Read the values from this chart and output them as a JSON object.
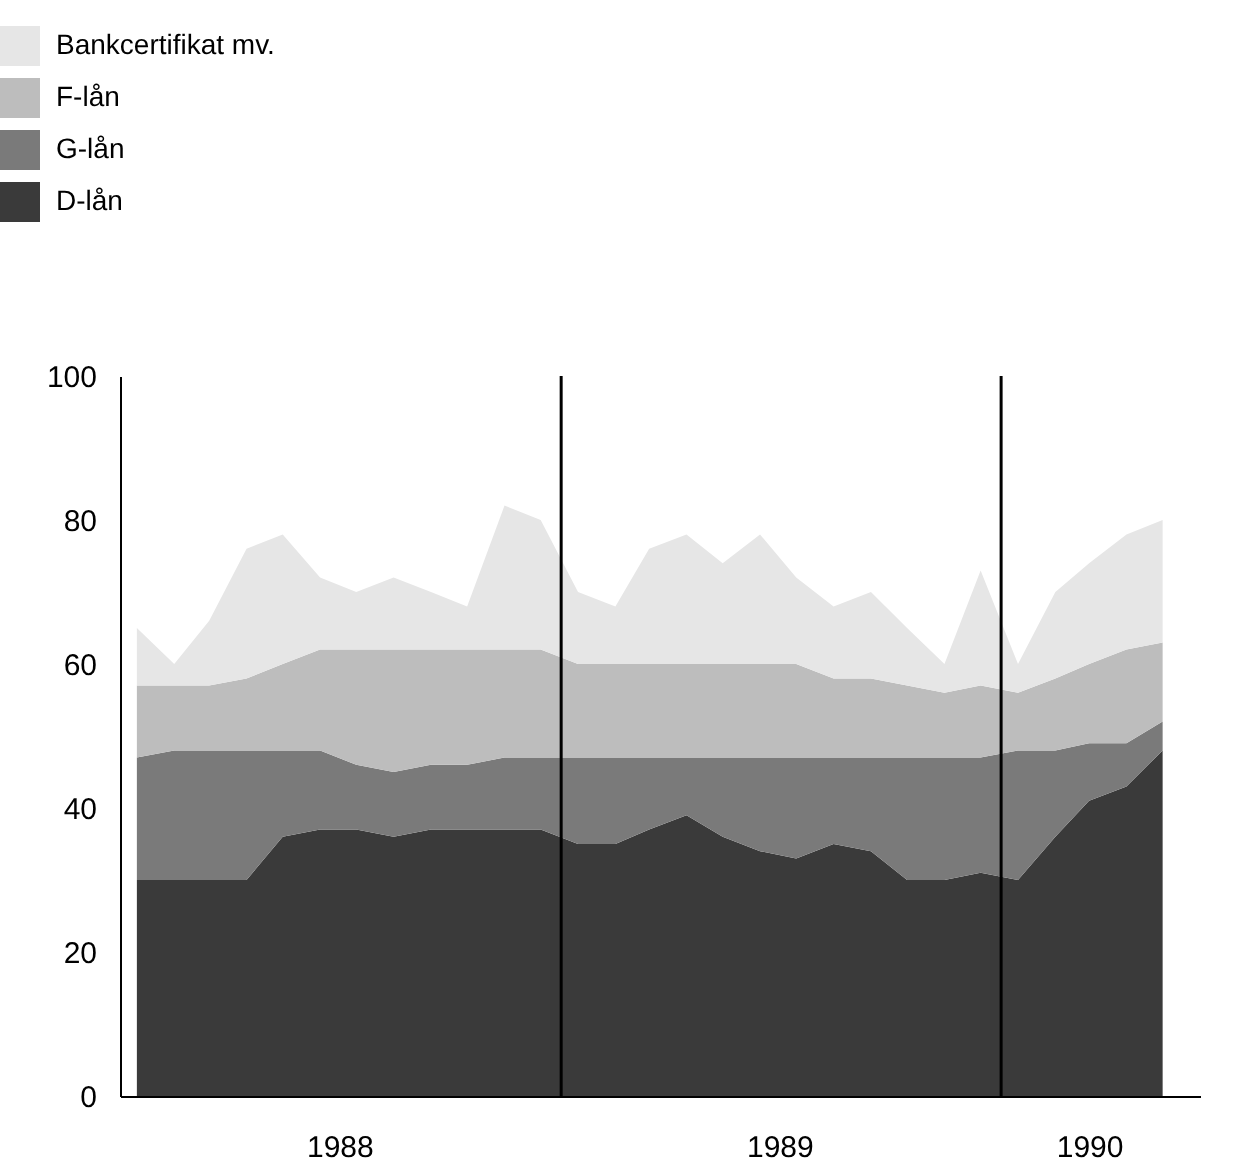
{
  "chart_data": {
    "type": "area",
    "stacked": true,
    "x": [
      "1988-01-15",
      "1988-02-15",
      "1988-03-15",
      "1988-04-15",
      "1988-05-15",
      "1988-06-15",
      "1988-07-15",
      "1988-08-15",
      "1988-09-15",
      "1988-10-15",
      "1988-11-15",
      "1988-12-15",
      "1989-01-15",
      "1989-02-15",
      "1989-03-15",
      "1989-04-15",
      "1989-05-15",
      "1989-06-15",
      "1989-07-15",
      "1989-08-15",
      "1989-09-15",
      "1989-10-15",
      "1989-11-15",
      "1989-12-15",
      "1990-01-15",
      "1990-02-15",
      "1990-03-15",
      "1990-04-15",
      "1990-05-15"
    ],
    "series": [
      {
        "name": "D-lån",
        "color": "#3a3a3a",
        "values": [
          30,
          30,
          30,
          30,
          36,
          37,
          37,
          36,
          37,
          37,
          37,
          37,
          35,
          35,
          37,
          39,
          36,
          34,
          33,
          35,
          34,
          30,
          30,
          31,
          30,
          36,
          41,
          43,
          48
        ]
      },
      {
        "name": "G-lån",
        "color": "#7a7a7a",
        "values": [
          17,
          18,
          18,
          18,
          12,
          11,
          9,
          9,
          9,
          9,
          10,
          10,
          12,
          12,
          10,
          8,
          11,
          13,
          14,
          12,
          13,
          17,
          17,
          16,
          18,
          12,
          8,
          6,
          4
        ]
      },
      {
        "name": "F-lån",
        "color": "#bdbdbd",
        "values": [
          10,
          9,
          9,
          10,
          12,
          14,
          16,
          17,
          16,
          16,
          15,
          15,
          13,
          13,
          13,
          13,
          13,
          13,
          13,
          11,
          11,
          10,
          9,
          10,
          8,
          10,
          11,
          13,
          11
        ]
      },
      {
        "name": "Bankcertifikat mv.",
        "color": "#e6e6e6",
        "values": [
          8,
          3,
          9,
          18,
          18,
          10,
          8,
          10,
          8,
          6,
          20,
          18,
          10,
          8,
          16,
          18,
          14,
          18,
          12,
          10,
          12,
          8,
          4,
          16,
          4,
          12,
          14,
          16,
          17
        ]
      }
    ],
    "xlim": [
      "1988-01-01",
      "1990-06-15"
    ],
    "xticks": [
      {
        "value": "1988-07-01",
        "label": "1988"
      },
      {
        "value": "1989-07-01",
        "label": "1989"
      },
      {
        "value": "1990-03-15",
        "label": "1990"
      }
    ],
    "ylim": [
      0,
      100
    ],
    "yticks": [
      0,
      20,
      40,
      60,
      80,
      100
    ],
    "ref_lines": [
      {
        "axis": "x",
        "value": "1989-01-01",
        "color": "#000000"
      },
      {
        "axis": "x",
        "value": "1990-01-01",
        "color": "#000000"
      }
    ],
    "grid": false,
    "legend": "top left"
  }
}
